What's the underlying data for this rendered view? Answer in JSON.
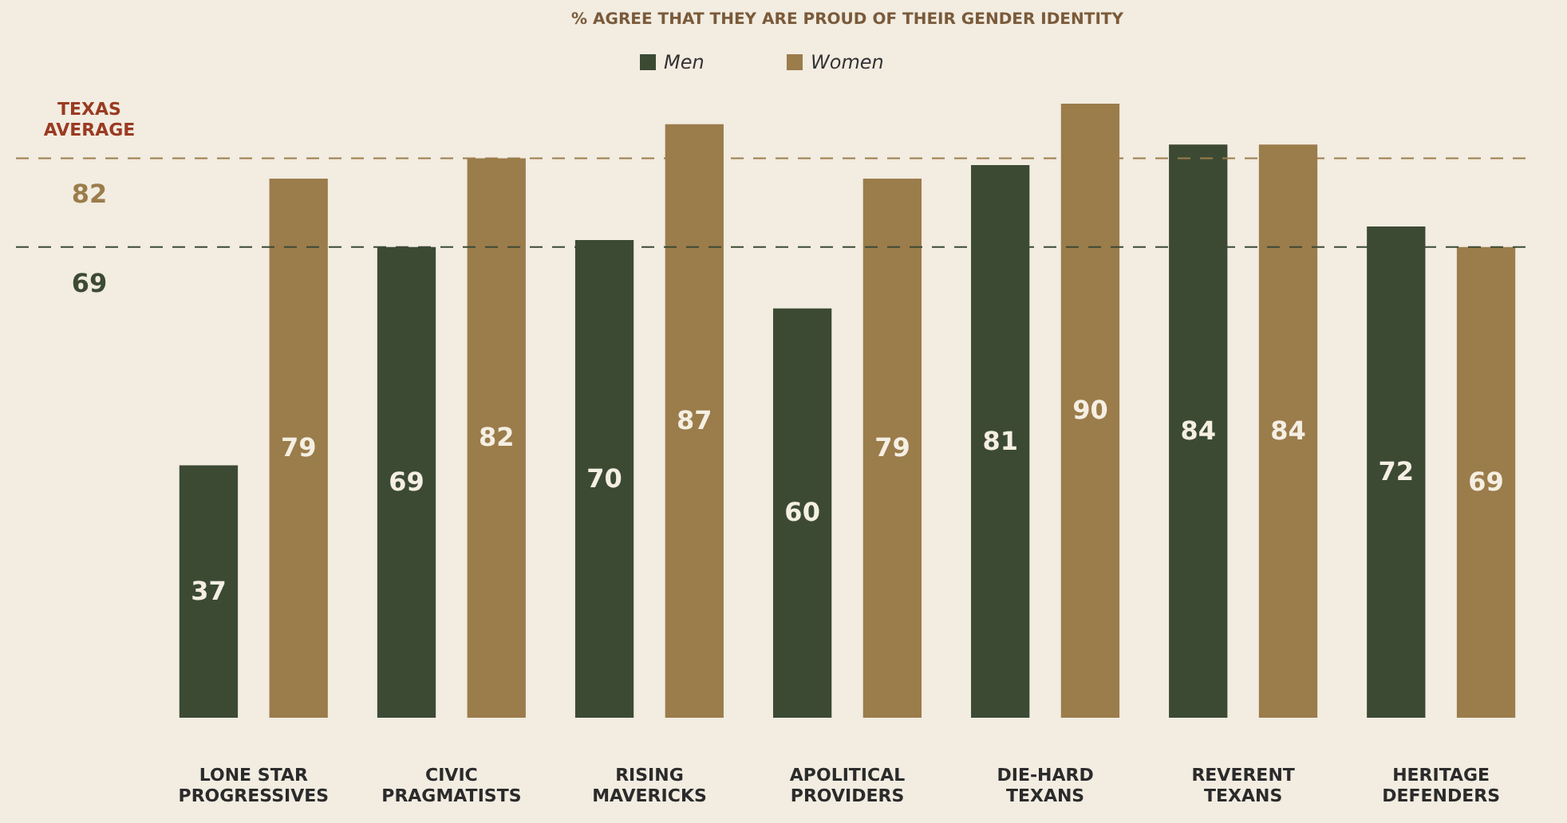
{
  "chart_data": {
    "type": "bar",
    "title": "% AGREE THAT THEY ARE PROUD OF THEIR GENDER IDENTITY",
    "categories": [
      "LONE STAR PROGRESSIVES",
      "CIVIC PRAGMATISTS",
      "RISING MAVERICKS",
      "APOLITICAL PROVIDERS",
      "DIE-HARD TEXANS",
      "REVERENT TEXANS",
      "HERITAGE DEFENDERS"
    ],
    "series": [
      {
        "name": "Men",
        "color": "#3c4a34",
        "values": [
          37,
          69,
          70,
          60,
          81,
          84,
          72
        ]
      },
      {
        "name": "Women",
        "color": "#9b7c4b",
        "values": [
          79,
          82,
          87,
          79,
          90,
          84,
          69
        ]
      }
    ],
    "data_labels": true,
    "legend": "top",
    "grid": false,
    "ref_lines": [
      {
        "axis": "y",
        "value": 82,
        "label": "82",
        "color": "#9b7c4b",
        "line_style": "dashed"
      },
      {
        "axis": "y",
        "value": 69,
        "label": "69",
        "color": "#3c4a34",
        "line_style": "dashed"
      }
    ],
    "annotations": [
      "TEXAS AVERAGE"
    ]
  }
}
